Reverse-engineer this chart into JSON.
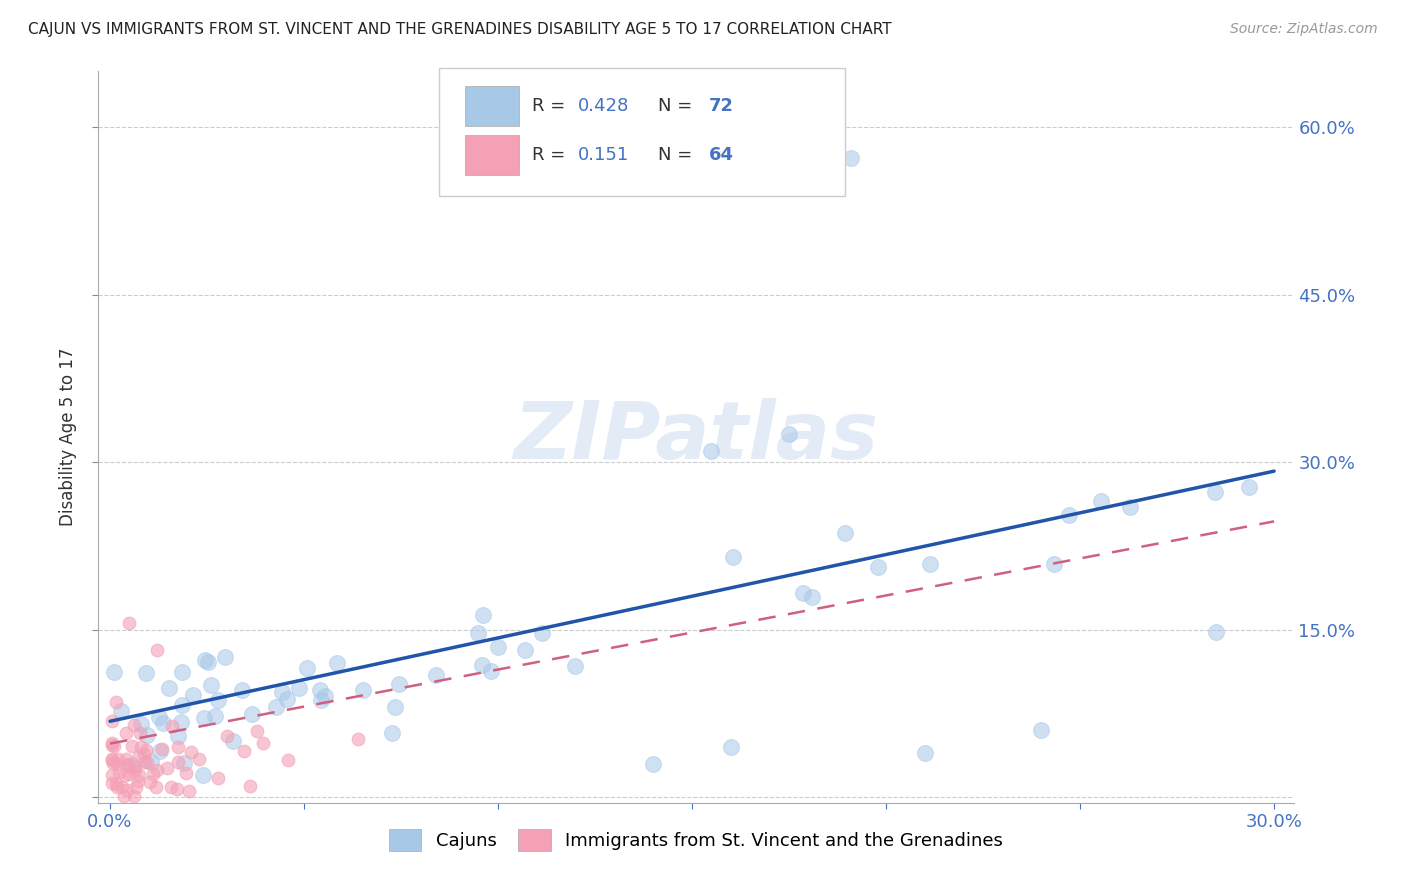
{
  "title": "CAJUN VS IMMIGRANTS FROM ST. VINCENT AND THE GRENADINES DISABILITY AGE 5 TO 17 CORRELATION CHART",
  "source": "Source: ZipAtlas.com",
  "ylabel": "Disability Age 5 to 17",
  "xlim": [
    -0.003,
    0.305
  ],
  "ylim": [
    -0.005,
    0.65
  ],
  "xticks": [
    0.0,
    0.05,
    0.1,
    0.15,
    0.2,
    0.25,
    0.3
  ],
  "yticks": [
    0.0,
    0.15,
    0.3,
    0.45,
    0.6
  ],
  "right_ytick_labels": [
    "",
    "15.0%",
    "30.0%",
    "45.0%",
    "60.0%"
  ],
  "xtick_labels": [
    "0.0%",
    "",
    "",
    "",
    "",
    "",
    "30.0%"
  ],
  "blue_R": "0.428",
  "blue_N": "72",
  "pink_R": "0.151",
  "pink_N": "64",
  "blue_color": "#a8c8e8",
  "pink_color": "#f4a0b5",
  "blue_line_color": "#2255aa",
  "pink_line_color": "#d06080",
  "blue_line_start_y": 0.068,
  "blue_line_end_y": 0.292,
  "pink_line_start_y": 0.048,
  "pink_line_end_y": 0.247,
  "legend_blue_label": "Cajuns",
  "legend_pink_label": "Immigrants from St. Vincent and the Grenadines",
  "watermark": "ZIPatlas"
}
